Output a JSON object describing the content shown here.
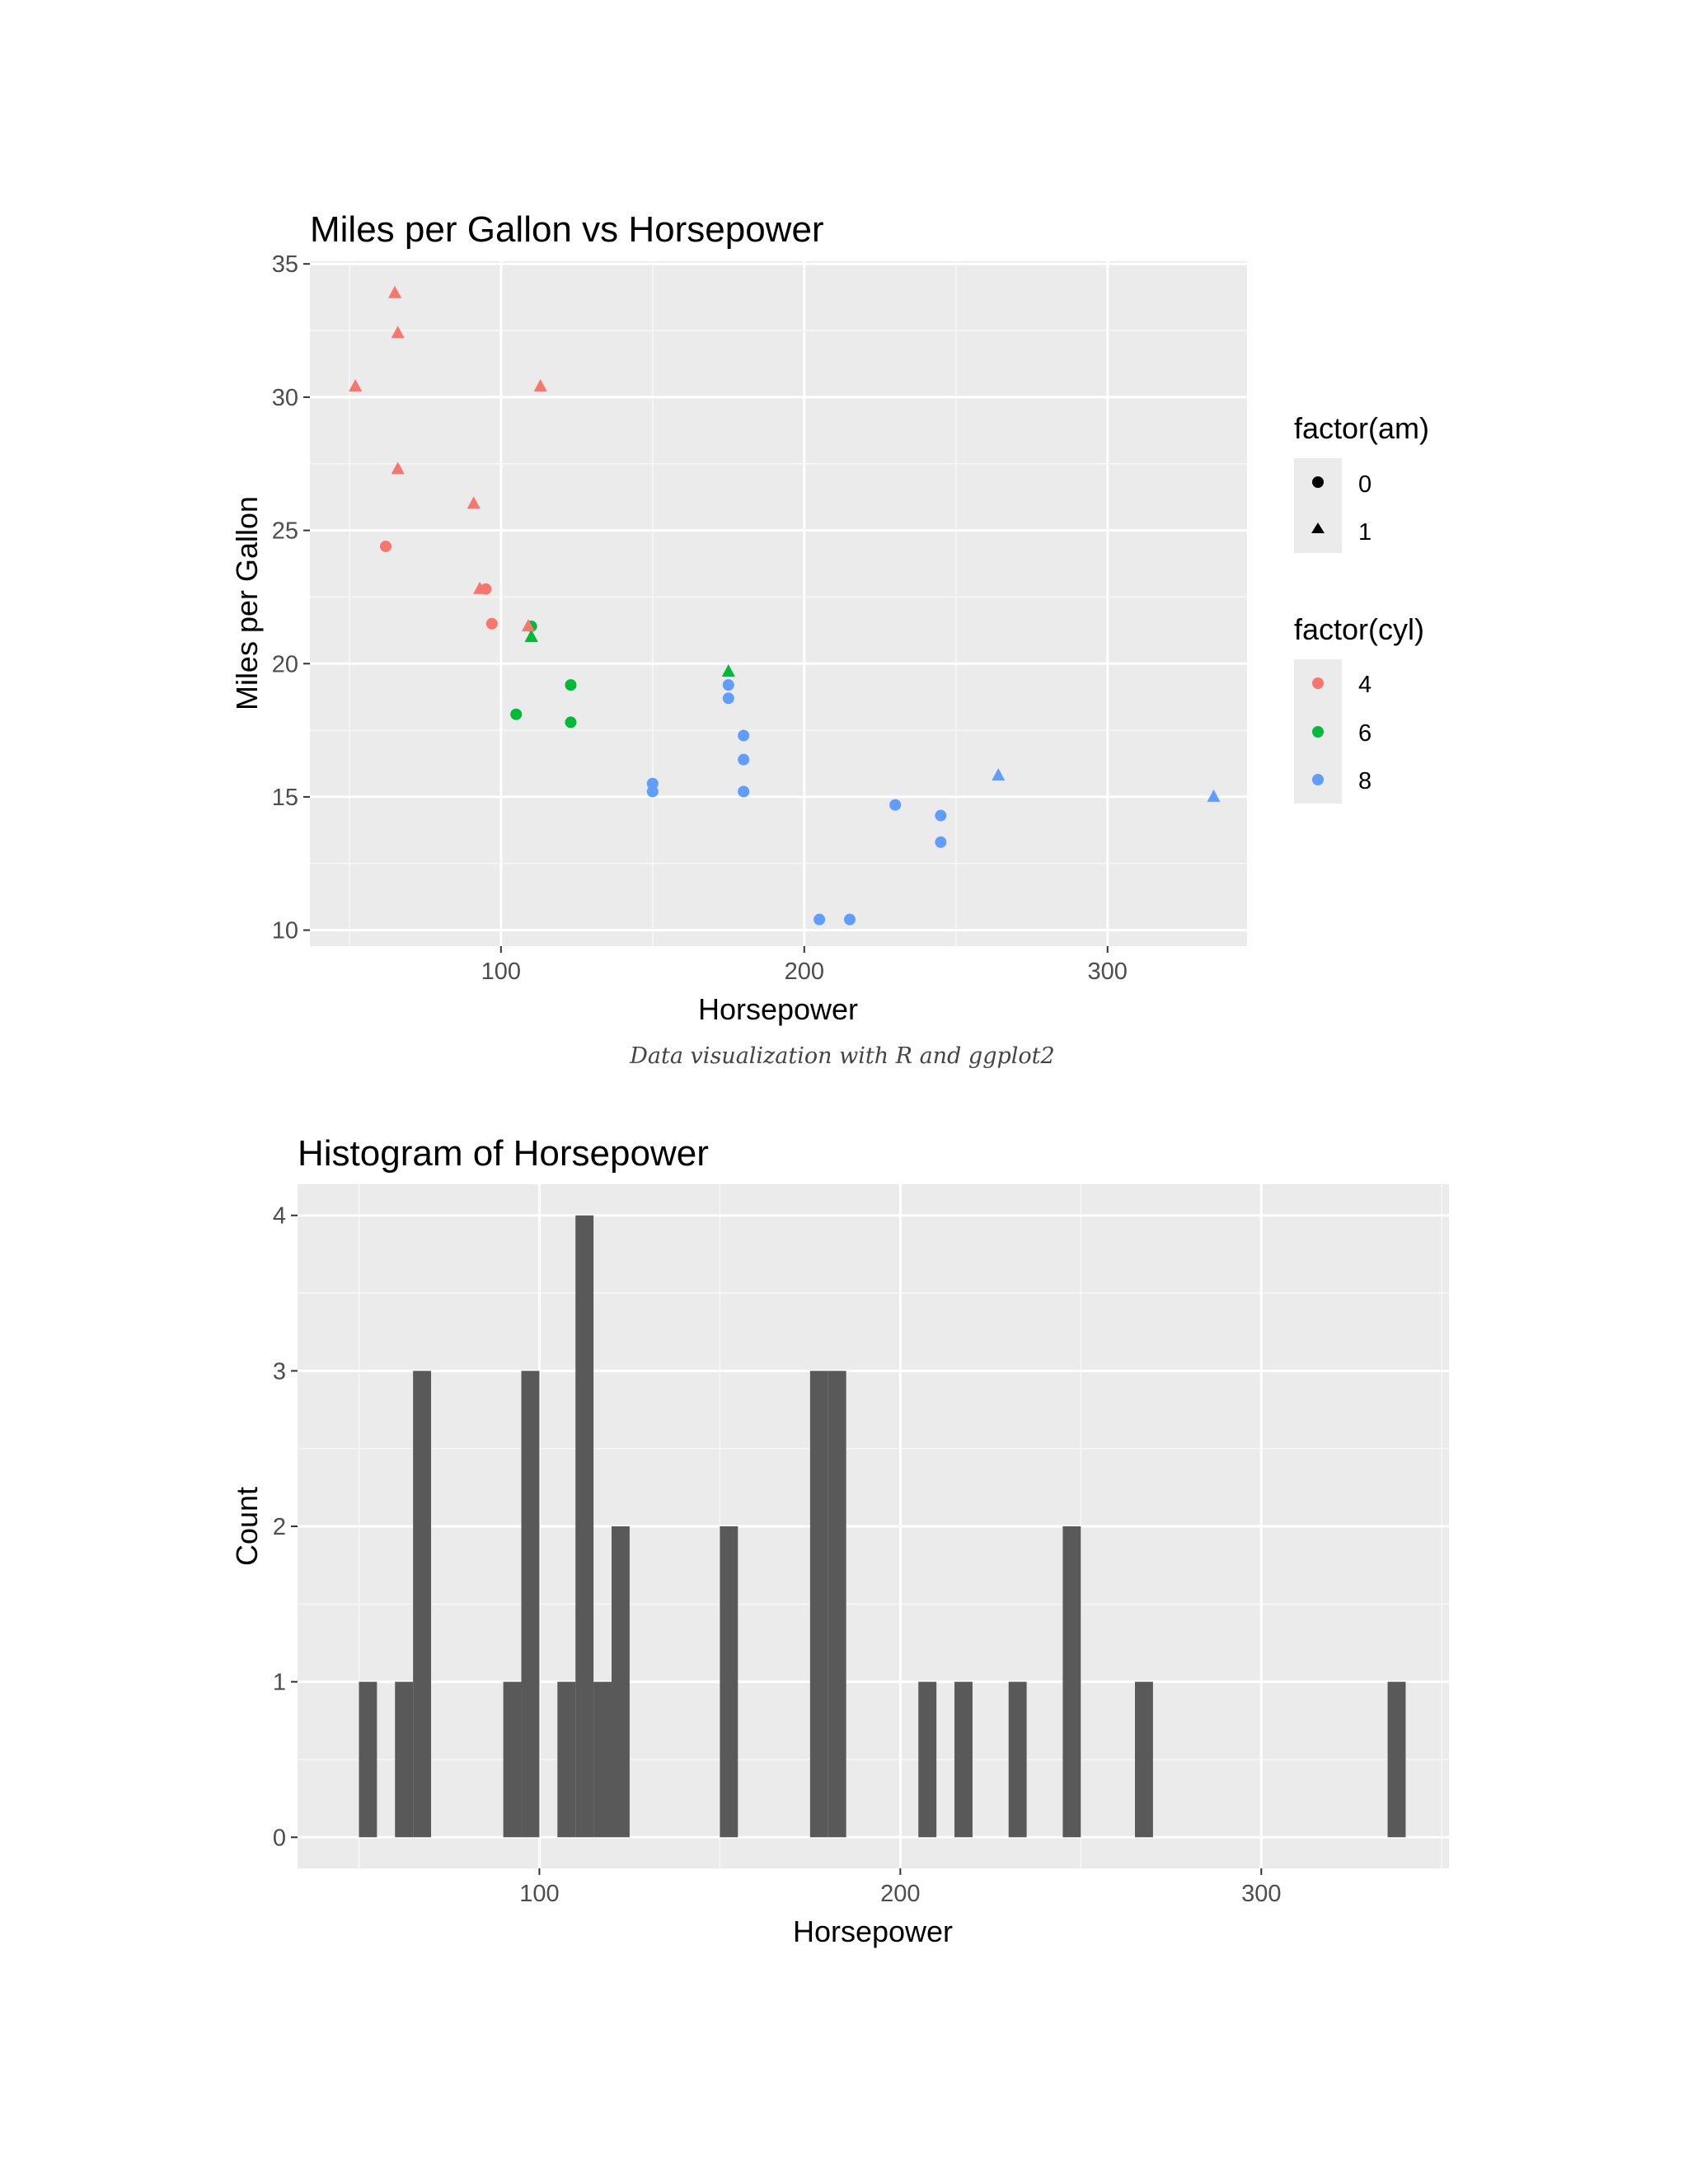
{
  "caption": "Data visualization with R and ggplot2",
  "chart_data": [
    {
      "type": "scatter",
      "title": "Miles per Gallon vs Horsepower",
      "xlabel": "Horsepower",
      "ylabel": "Miles per Gallon",
      "xlim": [
        37,
        346
      ],
      "ylim": [
        9.4,
        35.1
      ],
      "x_ticks": [
        100,
        200,
        300
      ],
      "y_ticks": [
        10,
        15,
        20,
        25,
        30,
        35
      ],
      "grid": true,
      "legend_position": "right",
      "legends": [
        {
          "title": "factor(am)",
          "entries": [
            {
              "label": "0",
              "shape": "circle"
            },
            {
              "label": "1",
              "shape": "triangle"
            }
          ]
        },
        {
          "title": "factor(cyl)",
          "entries": [
            {
              "label": "4",
              "color": "#F8766D"
            },
            {
              "label": "6",
              "color": "#00BA38"
            },
            {
              "label": "8",
              "color": "#619CFF"
            }
          ]
        }
      ],
      "colors": {
        "4": "#F8766D",
        "6": "#00BA38",
        "8": "#619CFF"
      },
      "points": [
        {
          "x": 110,
          "y": 21.0,
          "cyl": "6",
          "am": "1"
        },
        {
          "x": 110,
          "y": 21.0,
          "cyl": "6",
          "am": "1"
        },
        {
          "x": 93,
          "y": 22.8,
          "cyl": "4",
          "am": "1"
        },
        {
          "x": 110,
          "y": 21.4,
          "cyl": "6",
          "am": "0"
        },
        {
          "x": 175,
          "y": 18.7,
          "cyl": "8",
          "am": "0"
        },
        {
          "x": 105,
          "y": 18.1,
          "cyl": "6",
          "am": "0"
        },
        {
          "x": 245,
          "y": 14.3,
          "cyl": "8",
          "am": "0"
        },
        {
          "x": 62,
          "y": 24.4,
          "cyl": "4",
          "am": "0"
        },
        {
          "x": 95,
          "y": 22.8,
          "cyl": "4",
          "am": "0"
        },
        {
          "x": 123,
          "y": 19.2,
          "cyl": "6",
          "am": "0"
        },
        {
          "x": 123,
          "y": 17.8,
          "cyl": "6",
          "am": "0"
        },
        {
          "x": 180,
          "y": 16.4,
          "cyl": "8",
          "am": "0"
        },
        {
          "x": 180,
          "y": 17.3,
          "cyl": "8",
          "am": "0"
        },
        {
          "x": 180,
          "y": 15.2,
          "cyl": "8",
          "am": "0"
        },
        {
          "x": 205,
          "y": 10.4,
          "cyl": "8",
          "am": "0"
        },
        {
          "x": 215,
          "y": 10.4,
          "cyl": "8",
          "am": "0"
        },
        {
          "x": 230,
          "y": 14.7,
          "cyl": "8",
          "am": "0"
        },
        {
          "x": 66,
          "y": 32.4,
          "cyl": "4",
          "am": "1"
        },
        {
          "x": 52,
          "y": 30.4,
          "cyl": "4",
          "am": "1"
        },
        {
          "x": 65,
          "y": 33.9,
          "cyl": "4",
          "am": "1"
        },
        {
          "x": 97,
          "y": 21.5,
          "cyl": "4",
          "am": "0"
        },
        {
          "x": 150,
          "y": 15.5,
          "cyl": "8",
          "am": "0"
        },
        {
          "x": 150,
          "y": 15.2,
          "cyl": "8",
          "am": "0"
        },
        {
          "x": 245,
          "y": 13.3,
          "cyl": "8",
          "am": "0"
        },
        {
          "x": 175,
          "y": 19.2,
          "cyl": "8",
          "am": "0"
        },
        {
          "x": 66,
          "y": 27.3,
          "cyl": "4",
          "am": "1"
        },
        {
          "x": 91,
          "y": 26.0,
          "cyl": "4",
          "am": "1"
        },
        {
          "x": 113,
          "y": 30.4,
          "cyl": "4",
          "am": "1"
        },
        {
          "x": 264,
          "y": 15.8,
          "cyl": "8",
          "am": "1"
        },
        {
          "x": 175,
          "y": 19.7,
          "cyl": "6",
          "am": "1"
        },
        {
          "x": 335,
          "y": 15.0,
          "cyl": "8",
          "am": "1"
        },
        {
          "x": 109,
          "y": 21.4,
          "cyl": "4",
          "am": "1"
        }
      ]
    },
    {
      "type": "bar",
      "title": "Histogram of Horsepower",
      "xlabel": "Horsepower",
      "ylabel": "Count",
      "xlim": [
        33,
        352
      ],
      "ylim": [
        -0.2,
        4.2
      ],
      "x_ticks": [
        100,
        200,
        300
      ],
      "y_ticks": [
        0,
        1,
        2,
        3,
        4
      ],
      "grid": true,
      "bar_color": "#595959",
      "bin_width": 5,
      "bins": [
        {
          "start": 50,
          "end": 55,
          "count": 1
        },
        {
          "start": 60,
          "end": 65,
          "count": 1
        },
        {
          "start": 65,
          "end": 70,
          "count": 3
        },
        {
          "start": 90,
          "end": 95,
          "count": 1
        },
        {
          "start": 95,
          "end": 100,
          "count": 3
        },
        {
          "start": 105,
          "end": 110,
          "count": 1
        },
        {
          "start": 110,
          "end": 115,
          "count": 4
        },
        {
          "start": 115,
          "end": 120,
          "count": 1
        },
        {
          "start": 120,
          "end": 125,
          "count": 2
        },
        {
          "start": 150,
          "end": 155,
          "count": 2
        },
        {
          "start": 175,
          "end": 180,
          "count": 3
        },
        {
          "start": 180,
          "end": 185,
          "count": 3
        },
        {
          "start": 205,
          "end": 210,
          "count": 1
        },
        {
          "start": 215,
          "end": 220,
          "count": 1
        },
        {
          "start": 230,
          "end": 235,
          "count": 1
        },
        {
          "start": 245,
          "end": 250,
          "count": 2
        },
        {
          "start": 265,
          "end": 270,
          "count": 1
        },
        {
          "start": 335,
          "end": 340,
          "count": 1
        }
      ]
    }
  ]
}
